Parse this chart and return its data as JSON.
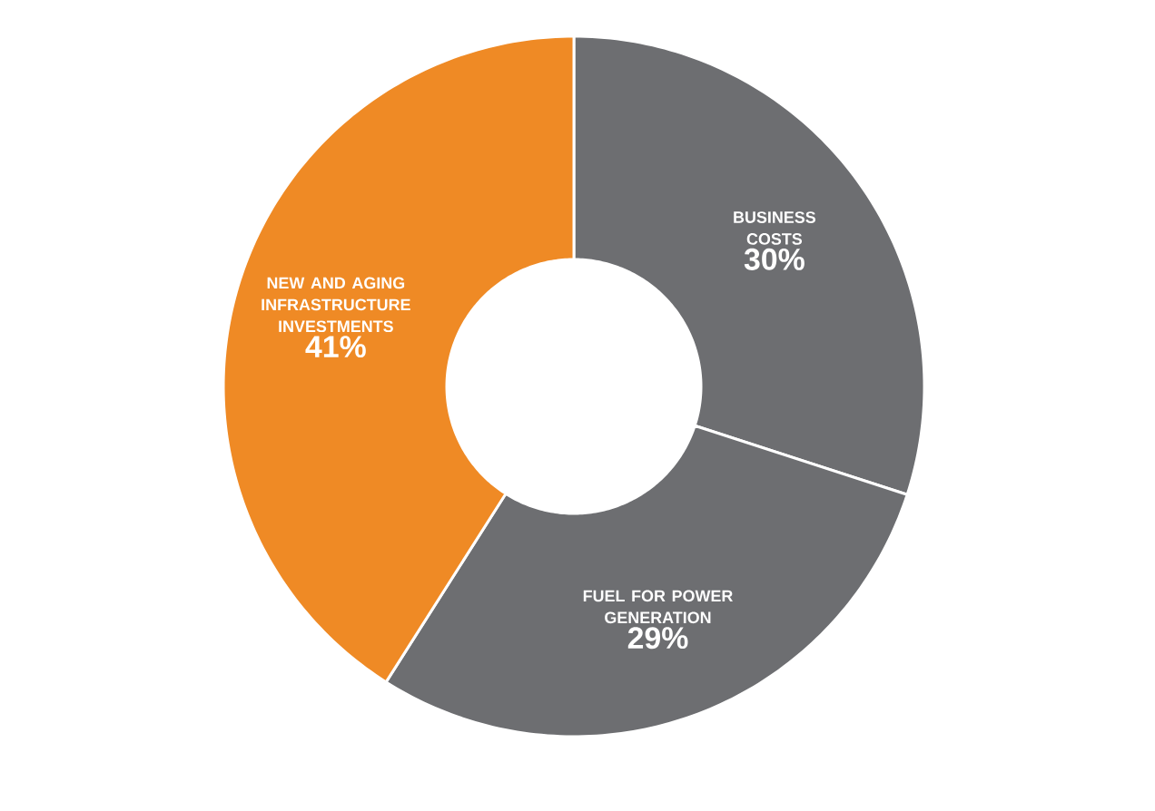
{
  "chart_data": {
    "type": "donut",
    "categories": [
      "BUSINESS COSTS",
      "FUEL FOR POWER GENERATION",
      "NEW AND AGING INFRASTRUCTURE INVESTMENTS"
    ],
    "values": [
      30,
      29,
      41
    ],
    "colors": [
      "#6d6e71",
      "#6d6e71",
      "#ef8a25"
    ],
    "value_labels": [
      "30%",
      "29%",
      "41%"
    ]
  }
}
